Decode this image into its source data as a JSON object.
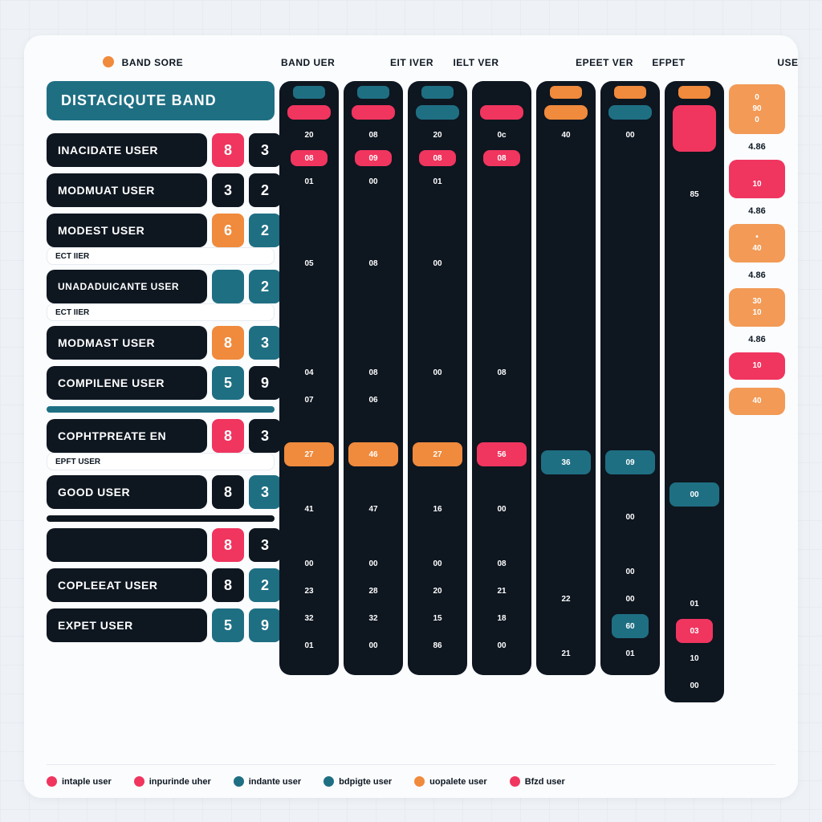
{
  "colors": {
    "teal": "#1f6f83",
    "dark": "#0e1620",
    "pink": "#f0355f",
    "orange": "#f08a3c",
    "orange2": "#f29a56",
    "white": "#ffffff",
    "page_bg": "#eef2f6",
    "card_bg": "#fbfcfe"
  },
  "typography": {
    "title_fontsize": 18,
    "label_fontsize": 14,
    "header_fontsize": 12
  },
  "header": {
    "left_dot_color": "#f08a3c",
    "cols": [
      "BAND SORE",
      "BAND UER",
      "EIT IVER",
      "IELT VER",
      "EPEET VER",
      "EFPET",
      "USER"
    ]
  },
  "title": "DISTACIQUTE BAND",
  "rows": [
    {
      "label": "INACIDATE USER",
      "s1": "8",
      "s2": "3",
      "c1": "#f0355f",
      "c2": "#0e1620"
    },
    {
      "label": "MODMUAT USER",
      "s1": "3",
      "s2": "2",
      "c1": "#0e1620",
      "c2": "#0e1620"
    },
    {
      "label": "MODEST USER",
      "s1": "6",
      "s2": "2",
      "c1": "#f08a3c",
      "c2": "#1f6f83",
      "sub": "ECT IIER",
      "sub_show_after_next": true
    },
    {
      "label": "UNADADUICANTE USER",
      "s1": "",
      "s2": "2",
      "c1": "#1f6f83",
      "c2": "#1f6f83",
      "sub": "ECT IIER"
    },
    {
      "label": "MODMAST USER",
      "s1": "8",
      "s2": "3",
      "c1": "#f08a3c",
      "c2": "#1f6f83"
    },
    {
      "label": "COMPILENE USER",
      "s1": "5",
      "s2": "9",
      "c1": "#1f6f83",
      "c2": "#0e1620",
      "divider_after": true,
      "divider_color": "#1f6f83"
    },
    {
      "label": "COPHTPREATE EN",
      "s1": "8",
      "s2": "3",
      "c1": "#f0355f",
      "c2": "#0e1620",
      "sub": "EPFT USER"
    },
    {
      "label": "GOOD USER",
      "s1": "8",
      "s2": "3",
      "c1": "#0e1620",
      "c2": "#1f6f83",
      "divider_after": true,
      "divider_color": "#0e1620"
    },
    {
      "label": "",
      "s1": "8",
      "s2": "3",
      "c1": "#f0355f",
      "c2": "#0e1620",
      "blank_label": true
    },
    {
      "label": "COPLEEAT USER",
      "s1": "8",
      "s2": "2",
      "c1": "#0e1620",
      "c2": "#1f6f83"
    },
    {
      "label": "EXPET USER",
      "s1": "5",
      "s2": "9",
      "c1": "#1f6f83",
      "c2": "#1f6f83"
    }
  ],
  "columns": [
    {
      "cap_color": "#1f6f83",
      "top_accent": "#f0355f",
      "cells": [
        "20",
        "08",
        "01",
        "",
        "",
        "05",
        "",
        "",
        "",
        "04",
        "07",
        "",
        "27",
        "",
        "41",
        "",
        "00",
        "23",
        "32",
        "01"
      ]
    },
    {
      "cap_color": "#1f6f83",
      "top_accent": "#f0355f",
      "cells": [
        "08",
        "09",
        "00",
        "",
        "",
        "08",
        "",
        "",
        "",
        "08",
        "06",
        "",
        "46",
        "",
        "47",
        "",
        "00",
        "28",
        "32",
        "00"
      ]
    },
    {
      "cap_color": "#1f6f83",
      "top_accent": "#1f6f83",
      "cells": [
        "20",
        "08",
        "01",
        "",
        "",
        "00",
        "",
        "",
        "",
        "00",
        "",
        "",
        "27",
        "",
        "16",
        "",
        "00",
        "20",
        "15",
        "86"
      ]
    },
    {
      "cap_color": "#0e1620",
      "top_accent": "#f0355f",
      "cells": [
        "0c",
        "08",
        "",
        "",
        "",
        "",
        "",
        "",
        "",
        "08",
        "",
        "",
        "56",
        "",
        "00",
        "",
        "08",
        "21",
        "18",
        "00"
      ]
    },
    {
      "cap_color": "#f08a3c",
      "top_accent": "#f08a3c",
      "cells": [
        "40",
        "",
        "",
        "",
        "",
        "",
        "",
        "",
        "",
        "",
        "",
        "",
        "36",
        "",
        "",
        "",
        "",
        "22",
        "",
        "21"
      ]
    },
    {
      "cap_color": "#f08a3c",
      "top_accent": "#1f6f83",
      "cells": [
        "00",
        "",
        "",
        "",
        "",
        "",
        "",
        "",
        "",
        "",
        "",
        "",
        "09",
        "",
        "00",
        "",
        "00",
        "00",
        "60",
        "01"
      ],
      "mid_teal_cell_index": 18
    },
    {
      "cap_color": "#f08a3c",
      "top_accent": "#f0355f",
      "cells": [
        "",
        "85",
        "",
        "",
        "",
        "",
        "",
        "",
        "",
        "",
        "",
        "",
        "00",
        "",
        "",
        "",
        "01",
        "03",
        "10",
        "00"
      ],
      "big_pink_top": true,
      "pink_accent_index": 17
    }
  ],
  "right_side": [
    {
      "type": "badge",
      "text": "0\n90\n0",
      "bg": "#f29a56"
    },
    {
      "type": "text",
      "text": "4.86"
    },
    {
      "type": "badge",
      "text": "\n10",
      "bg": "#f0355f"
    },
    {
      "type": "text",
      "text": "4.86"
    },
    {
      "type": "badge",
      "text": "•\n40",
      "bg": "#f29a56"
    },
    {
      "type": "text",
      "text": "4.86"
    },
    {
      "type": "badge",
      "text": "30\n10",
      "bg": "#f29a56"
    },
    {
      "type": "text",
      "text": "4.86"
    },
    {
      "type": "badge",
      "text": "10",
      "bg": "#f0355f"
    },
    {
      "type": "badge",
      "text": "40",
      "bg": "#f29a56"
    }
  ],
  "legend": [
    {
      "label": "intaple user",
      "color": "#f0355f"
    },
    {
      "label": "inpurinde uher",
      "color": "#f0355f"
    },
    {
      "label": "indante user",
      "color": "#1f6f83"
    },
    {
      "label": "bdpigte user",
      "color": "#1f6f83"
    },
    {
      "label": "uopalete user",
      "color": "#f08a3c"
    },
    {
      "label": "Bfzd user",
      "color": "#f0355f"
    }
  ]
}
